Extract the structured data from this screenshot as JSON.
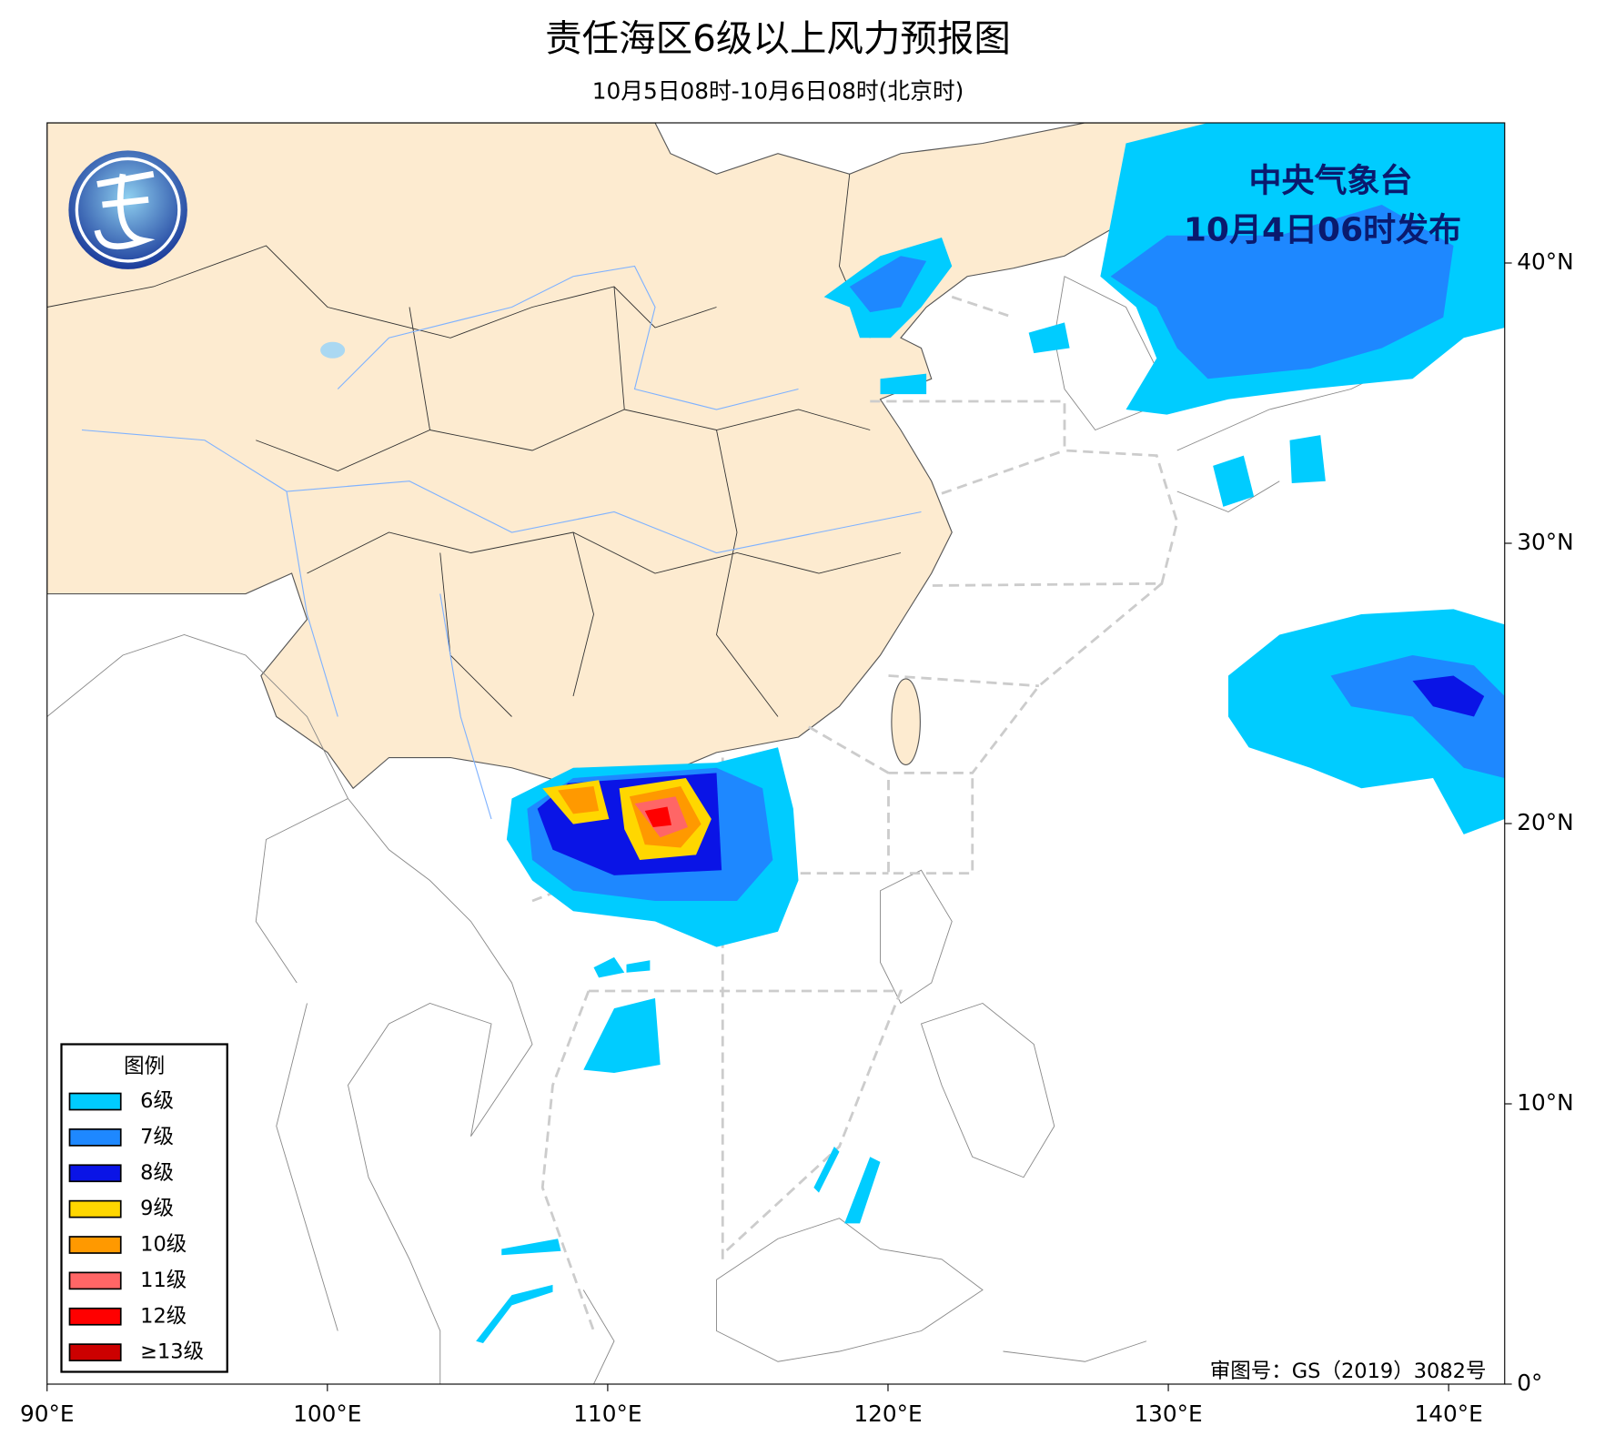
{
  "title": "责任海区6级以上风力预报图",
  "subtitle": "10月5日08时-10月6日08时(北京时)",
  "issuer": "中央气象台",
  "issue_time": "10月4日06时发布",
  "approval": "审图号：GS（2019）3082号",
  "map": {
    "xlim": [
      90,
      142
    ],
    "ylim": [
      0,
      45
    ],
    "xticks": [
      {
        "value": 90,
        "label": "90°E"
      },
      {
        "value": 100,
        "label": "100°E"
      },
      {
        "value": 110,
        "label": "110°E"
      },
      {
        "value": 120,
        "label": "120°E"
      },
      {
        "value": 130,
        "label": "130°E"
      },
      {
        "value": 140,
        "label": "140°E"
      }
    ],
    "yticks": [
      {
        "value": 0,
        "label": "0°"
      },
      {
        "value": 10,
        "label": "10°N"
      },
      {
        "value": 20,
        "label": "20°N"
      },
      {
        "value": 30,
        "label": "30°N"
      },
      {
        "value": 40,
        "label": "40°N"
      }
    ]
  },
  "legend": {
    "title": "图例",
    "items": [
      {
        "label": "6级",
        "color": "#00ccff"
      },
      {
        "label": "7级",
        "color": "#1e88ff"
      },
      {
        "label": "8级",
        "color": "#0a14e6"
      },
      {
        "label": "9级",
        "color": "#ffd700"
      },
      {
        "label": "10级",
        "color": "#ff9900"
      },
      {
        "label": "11级",
        "color": "#ff6666"
      },
      {
        "label": "12级",
        "color": "#ff0000"
      },
      {
        "label": "≥13级",
        "color": "#cc0000"
      }
    ]
  }
}
